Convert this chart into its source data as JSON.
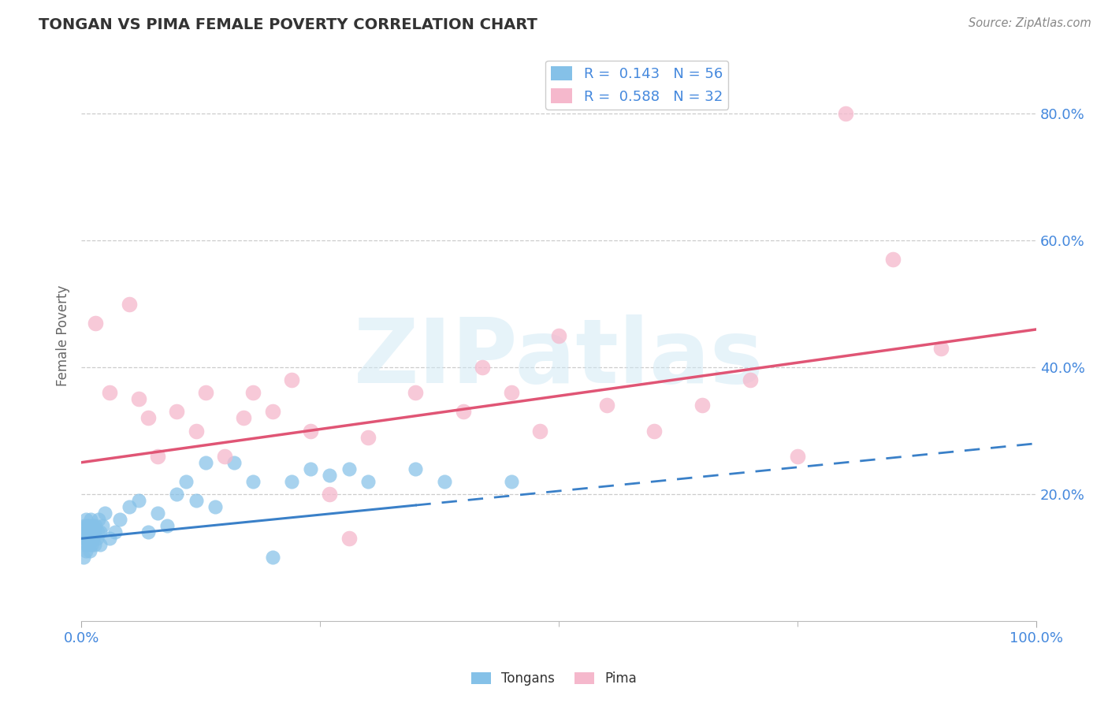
{
  "title": "TONGAN VS PIMA FEMALE POVERTY CORRELATION CHART",
  "source": "Source: ZipAtlas.com",
  "ylabel": "Female Poverty",
  "legend_label1": "Tongans",
  "legend_label2": "Pima",
  "r1": 0.143,
  "n1": 56,
  "r2": 0.588,
  "n2": 32,
  "color_blue": "#85c1e8",
  "color_blue_line": "#3a80c8",
  "color_pink": "#f5b8cc",
  "color_pink_line": "#e05575",
  "color_title": "#333333",
  "color_axis_label": "#666666",
  "color_tick": "#4488dd",
  "background": "#ffffff",
  "watermark": "ZIPatlas",
  "grid_color": "#cccccc",
  "xlim": [
    0,
    100
  ],
  "ylim": [
    0,
    90
  ],
  "tongans_solid_end": 35,
  "blue_line_x0": 0,
  "blue_line_y0": 13.0,
  "blue_line_x1": 100,
  "blue_line_y1": 28.0,
  "pink_line_x0": 0,
  "pink_line_y0": 25.0,
  "pink_line_x1": 100,
  "pink_line_y1": 46.0,
  "tongans_x": [
    0.2,
    0.3,
    0.3,
    0.4,
    0.4,
    0.5,
    0.5,
    0.5,
    0.6,
    0.6,
    0.6,
    0.7,
    0.7,
    0.8,
    0.8,
    0.9,
    0.9,
    1.0,
    1.0,
    1.1,
    1.2,
    1.2,
    1.3,
    1.4,
    1.5,
    1.6,
    1.7,
    1.8,
    2.0,
    2.0,
    2.2,
    2.5,
    3.0,
    3.5,
    4.0,
    5.0,
    6.0,
    7.0,
    8.0,
    9.0,
    10.0,
    11.0,
    12.0,
    13.0,
    14.0,
    16.0,
    18.0,
    20.0,
    22.0,
    24.0,
    26.0,
    28.0,
    30.0,
    35.0,
    38.0,
    45.0
  ],
  "tongans_y": [
    10,
    13,
    15,
    12,
    14,
    11,
    13,
    16,
    12,
    14,
    15,
    13,
    15,
    12,
    14,
    11,
    13,
    14,
    16,
    12,
    13,
    15,
    14,
    12,
    15,
    13,
    14,
    16,
    12,
    14,
    15,
    17,
    13,
    14,
    16,
    18,
    19,
    14,
    17,
    15,
    20,
    22,
    19,
    25,
    18,
    25,
    22,
    10,
    22,
    24,
    23,
    24,
    22,
    24,
    22,
    22
  ],
  "pima_x": [
    1.5,
    3.0,
    5.0,
    6.0,
    7.0,
    8.0,
    10.0,
    12.0,
    13.0,
    15.0,
    17.0,
    18.0,
    20.0,
    22.0,
    24.0,
    26.0,
    28.0,
    30.0,
    35.0,
    40.0,
    42.0,
    45.0,
    48.0,
    50.0,
    55.0,
    60.0,
    65.0,
    70.0,
    75.0,
    80.0,
    85.0,
    90.0
  ],
  "pima_y": [
    47,
    36,
    50,
    35,
    32,
    26,
    33,
    30,
    36,
    26,
    32,
    36,
    33,
    38,
    30,
    20,
    13,
    29,
    36,
    33,
    40,
    36,
    30,
    45,
    34,
    30,
    34,
    38,
    26,
    80,
    57,
    43
  ]
}
